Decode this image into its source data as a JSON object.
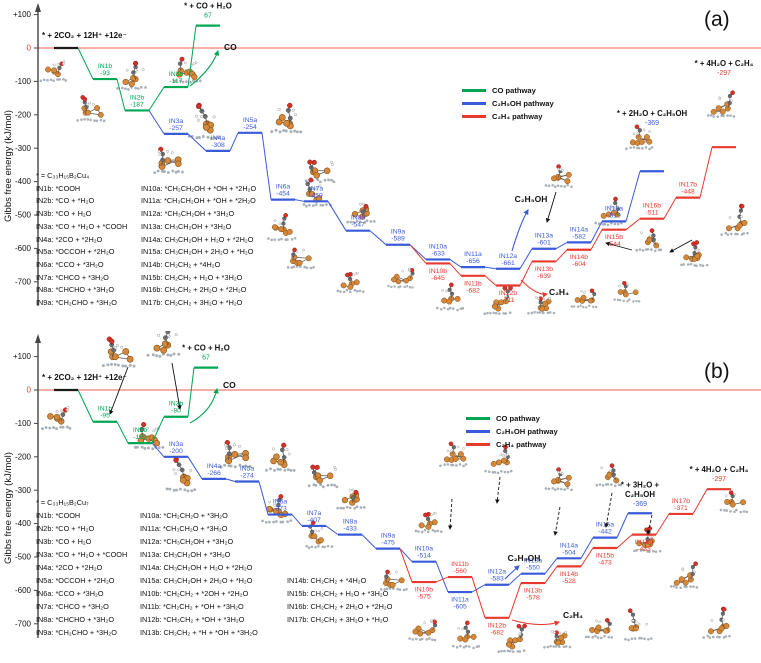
{
  "figure": {
    "panels": [
      {
        "tag": "(a)"
      },
      {
        "tag": "(b)"
      }
    ],
    "y_axis_label": "Gibbs free energy (kJ/mol)",
    "y_ticks": [
      "+100",
      "0",
      "-100",
      "-200",
      "-300",
      "-400",
      "-500",
      "-600",
      "-700"
    ],
    "legend": [
      {
        "label": "CO pathway",
        "color": "#00a651"
      },
      {
        "label": "C₂H₅OH pathway",
        "color": "#3a5bd9"
      },
      {
        "label": "C₂H₄ pathway",
        "color": "#e8392f"
      }
    ],
    "zero_line_color": "#f2948c"
  },
  "chart_data": [
    {
      "type": "line",
      "subtype": "reaction-gibbs-energy-diagram",
      "panel": "(a)",
      "ylabel": "Gibbs free energy (kJ/mol)",
      "ylim": [
        -750,
        130
      ],
      "unit": "kJ/mol",
      "grid": false,
      "legend_position": "upper-middle",
      "catalyst_note": "* = C₃₃H₁₅B₂Cu₄",
      "initial_state": {
        "label": "* + 2CO₂ + 12H⁺ +12e⁻",
        "E": 0
      },
      "series": [
        {
          "key": "co",
          "name": "CO pathway",
          "color": "#00a651",
          "release": "CO",
          "levels": [
            {
              "id": "*",
              "E": 0
            },
            {
              "id": "IN1b",
              "E": -93
            },
            {
              "id": "IN2b",
              "E": -187
            },
            {
              "id": "IN3b",
              "E": -117
            },
            {
              "id": "COf",
              "E": 67,
              "label_lines": [
                "* + CO + H₂O"
              ]
            }
          ]
        },
        {
          "key": "etoh",
          "name": "C₂H₅OH pathway",
          "color": "#3a5bd9",
          "release": "C₂H₅OH",
          "levels": [
            {
              "id": "IN2b",
              "E": -187
            },
            {
              "id": "IN3a",
              "E": -257
            },
            {
              "id": "IN4a",
              "E": -308
            },
            {
              "id": "IN5a",
              "E": -254
            },
            {
              "id": "IN6a",
              "E": -454
            },
            {
              "id": "IN7a",
              "E": -459
            },
            {
              "id": "IN8a",
              "E": -547
            },
            {
              "id": "IN9a",
              "E": -589
            },
            {
              "id": "IN10a",
              "E": -633
            },
            {
              "id": "IN11a",
              "E": -656
            },
            {
              "id": "IN12a",
              "E": -661
            },
            {
              "id": "IN13a",
              "E": -601
            },
            {
              "id": "IN14a",
              "E": -582
            },
            {
              "id": "IN15a",
              "E": -519
            },
            {
              "id": "EtOHf",
              "E": -369,
              "label_lines": [
                "* + 2H₂O + C₂H₅OH"
              ]
            }
          ]
        },
        {
          "key": "c2h4",
          "name": "C₂H₄ pathway",
          "color": "#e8392f",
          "release": "C₂H₄",
          "levels": [
            {
              "id": "IN9a",
              "E": -589
            },
            {
              "id": "IN10b",
              "E": -645
            },
            {
              "id": "IN11b",
              "E": -682
            },
            {
              "id": "IN12b",
              "E": -711
            },
            {
              "id": "IN13b",
              "E": -639
            },
            {
              "id": "IN14b",
              "E": -604
            },
            {
              "id": "IN15b",
              "E": -544
            },
            {
              "id": "IN16b",
              "E": -511
            },
            {
              "id": "IN17b",
              "E": -448
            },
            {
              "id": "C2H4f",
              "E": -297,
              "label_lines": [
                "* + 4H₂O + C₂H₄"
              ]
            }
          ]
        }
      ],
      "definitions": {
        "col1": [
          "IN1b: *COOH",
          "IN2b: *CO + *H₂O",
          "IN3b: *CO + H₂O",
          "IN3a: *CO + *H₂O + *COOH",
          "IN4a: *2CO + *2H₂O",
          "IN5a: *OCCOH + *2H₂O",
          "IN6a: *CCO + *3H₂O",
          "IN7a: *CHCO + *3H₂O",
          "IN8a: *CHCHO + *3H₂O",
          "IN9a: *CH₂CHO + *3H₂O"
        ],
        "col2": [
          "IN10a: *CH₂CH₂OH + *OH + *2H₂O",
          "IN11a: *CH₃CH₂OH + *OH + *2H₂O",
          "IN12a: *CH₃CH₂OH + *3H₂O",
          "IN13a: CH₃CH₂OH + *3H₂O",
          "IN14a: CH₃CH₂OH + H₂O + *2H₂O",
          "IN15a: CH₃CH₂OH + 2H₂O + *H₂O",
          "IN14b: CH₂CH₂ + *4H₂O",
          "IN15b: CH₂CH₂ + H₂O + *3H₂O",
          "IN16b: CH₂CH₂ + 2H₂O + *2H₂O",
          "IN17b: CH₂CH₂ + 3H₂O + *H₂O"
        ],
        "col3": []
      }
    },
    {
      "type": "line",
      "subtype": "reaction-gibbs-energy-diagram",
      "panel": "(b)",
      "ylabel": "Gibbs free energy (kJ/mol)",
      "ylim": [
        -750,
        130
      ],
      "unit": "kJ/mol",
      "grid": false,
      "legend_position": "upper-middle",
      "catalyst_note": "* = C₃₃H₁₅B₂Cu₇",
      "initial_state": {
        "label": "* + 2CO₂ + 12H⁺ +12e⁻",
        "E": 0
      },
      "series": [
        {
          "key": "co",
          "name": "CO pathway",
          "color": "#00a651",
          "release": "CO",
          "levels": [
            {
              "id": "*",
              "E": 0
            },
            {
              "id": "IN1b",
              "E": -95
            },
            {
              "id": "IN2b",
              "E": -159
            },
            {
              "id": "IN3b",
              "E": -80
            },
            {
              "id": "COf",
              "E": 67,
              "label_lines": [
                "* + CO + H₂O"
              ]
            }
          ]
        },
        {
          "key": "etoh",
          "name": "C₂H₅OH pathway",
          "color": "#3a5bd9",
          "release": "C₂H₅OH",
          "levels": [
            {
              "id": "IN2b",
              "E": -159
            },
            {
              "id": "IN3a",
              "E": -200
            },
            {
              "id": "IN4a",
              "E": -266
            },
            {
              "id": "IN5a",
              "E": -274
            },
            {
              "id": "IN6a",
              "E": -373
            },
            {
              "id": "IN7a",
              "E": -407
            },
            {
              "id": "IN8a",
              "E": -433
            },
            {
              "id": "IN9a",
              "E": -475
            },
            {
              "id": "IN10a",
              "E": -514
            },
            {
              "id": "IN11a",
              "E": -605
            },
            {
              "id": "IN12a",
              "E": -583
            },
            {
              "id": "IN13a",
              "E": -550
            },
            {
              "id": "IN14a",
              "E": -504
            },
            {
              "id": "IN15a",
              "E": -442
            },
            {
              "id": "EtOHf",
              "E": -369,
              "label_lines": [
                "* + 3H₂O +",
                "C₂H₅OH"
              ]
            }
          ]
        },
        {
          "key": "c2h4",
          "name": "C₂H₄ pathway",
          "color": "#e8392f",
          "release": "C₂H₄",
          "levels": [
            {
              "id": "IN9a",
              "E": -475
            },
            {
              "id": "IN10b",
              "E": -575
            },
            {
              "id": "IN11b",
              "E": -560
            },
            {
              "id": "IN12b",
              "E": -682
            },
            {
              "id": "IN13b",
              "E": -578
            },
            {
              "id": "IN14b",
              "E": -528
            },
            {
              "id": "IN15b",
              "E": -473
            },
            {
              "id": "IN16b",
              "E": -433
            },
            {
              "id": "IN17b",
              "E": -371
            },
            {
              "id": "C2H4f",
              "E": -297,
              "label_lines": [
                "* + 4H₂O + C₂H₄"
              ]
            }
          ]
        }
      ],
      "definitions": {
        "col1": [
          "IN1b: *COOH",
          "IN2b: *CO + *H₂O",
          "IN3b: *CO + H₂O",
          "IN3a: *CO + *H₂O + *COOH",
          "IN4a: *2CO + *2H₂O",
          "IN5a: *OCCOH + *2H₂O",
          "IN6a: *CCO + *3H₂O",
          "IN7a: *CHCO + *3H₂O",
          "IN8a: *CHCHO + *3H₂O",
          "IN9a: *CH₂CHO + *3H₂O"
        ],
        "col2": [
          "IN10a: *CH₂CH₂O + *3H₂O",
          "IN11a: *CH₃CH₂O + *3H₂O",
          "IN12a: *CH₃CH₂OH + *3H₂O",
          "IN13a: CH₃CH₂OH + *3H₂O",
          "IN14a: CH₃CH₂OH + H₂O + *2H₂O",
          "IN15a: CH₃CH₂OH + 2H₂O + *H₂O",
          "IN10b: *CH₂CH₂ + *2OH + *2H₂O",
          "IN11b: *CH₂CH₂ + *OH + *3H₂O",
          "IN12b: *CH₃CH₂ + *OH + *3H₂O",
          "IN13b: CH₂CH₂ + *H + *OH + *3H₂O"
        ],
        "col3": [
          "IN14b: CH₂CH₂ + *4H₂O",
          "IN15b: CH₂CH₂ + H₂O + *3H₂O",
          "IN16b: CH₂CH₂ + 2H₂O + *2H₂O",
          "IN17b: CH₂CH₂ + 3H₂O + *H₂O"
        ]
      }
    }
  ]
}
